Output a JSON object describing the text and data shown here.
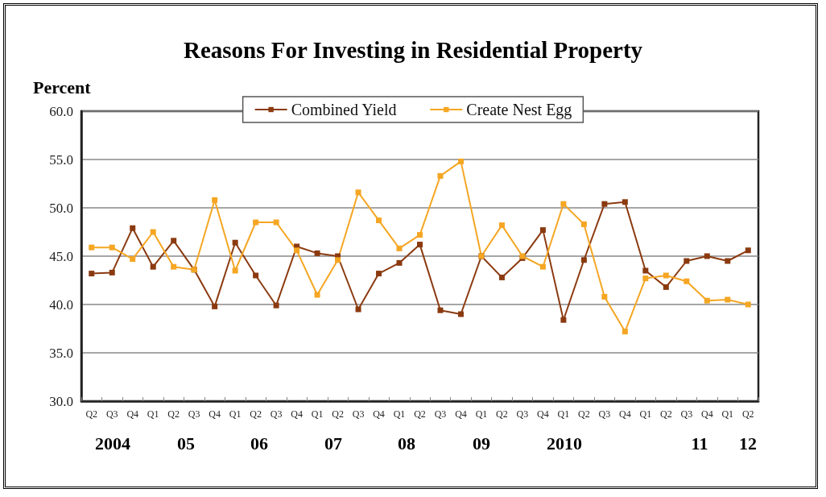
{
  "chart_data": {
    "type": "line",
    "title": "Reasons For Investing in Residential Property",
    "ylabel": "Percent",
    "categories": [
      "Q2",
      "Q3",
      "Q4",
      "Q1",
      "Q2",
      "Q3",
      "Q4",
      "Q1",
      "Q2",
      "Q3",
      "Q4",
      "Q1",
      "Q2",
      "Q3",
      "Q4",
      "Q1",
      "Q2",
      "Q3",
      "Q4",
      "Q1",
      "Q2",
      "Q3",
      "Q4",
      "Q1",
      "Q2",
      "Q3",
      "Q4",
      "Q1",
      "Q2",
      "Q3",
      "Q4",
      "Q1",
      "Q2"
    ],
    "series": [
      {
        "name": "Combined Yield",
        "color": "#8b3a10",
        "values": [
          43.2,
          43.3,
          47.9,
          43.9,
          46.6,
          43.6,
          39.8,
          46.4,
          43.0,
          39.9,
          46.0,
          45.3,
          45.0,
          39.5,
          43.2,
          44.3,
          46.2,
          39.4,
          39.0,
          45.0,
          42.8,
          44.8,
          47.7,
          38.4,
          44.6,
          50.4,
          50.6,
          43.5,
          41.8,
          44.5,
          45.0,
          44.5,
          45.6
        ]
      },
      {
        "name": "Create Nest Egg",
        "color": "#f5a623",
        "values": [
          45.9,
          45.9,
          44.7,
          47.5,
          43.9,
          43.6,
          50.8,
          43.5,
          48.5,
          48.5,
          45.6,
          41.0,
          44.6,
          51.6,
          48.7,
          45.8,
          47.2,
          53.3,
          54.8,
          45.0,
          48.2,
          45.0,
          43.9,
          50.4,
          48.3,
          40.8,
          37.2,
          42.7,
          43.0,
          42.4,
          40.4,
          40.5,
          40.0
        ]
      }
    ],
    "ylim": [
      30,
      60
    ],
    "yticks": [
      {
        "value": 30,
        "label": "30.0"
      },
      {
        "value": 35,
        "label": "35.0"
      },
      {
        "value": 40,
        "label": "40.0"
      },
      {
        "value": 45,
        "label": "45.0"
      },
      {
        "value": 50,
        "label": "50.0"
      },
      {
        "value": 55,
        "label": "55.0"
      },
      {
        "value": 60,
        "label": "60.0"
      }
    ],
    "annotations": [
      "2004",
      "05",
      "06",
      "07",
      "08",
      "09",
      "2010",
      "11",
      "12"
    ],
    "grid": "y",
    "legend": "top",
    "marker": "square",
    "line_style": "solid"
  }
}
